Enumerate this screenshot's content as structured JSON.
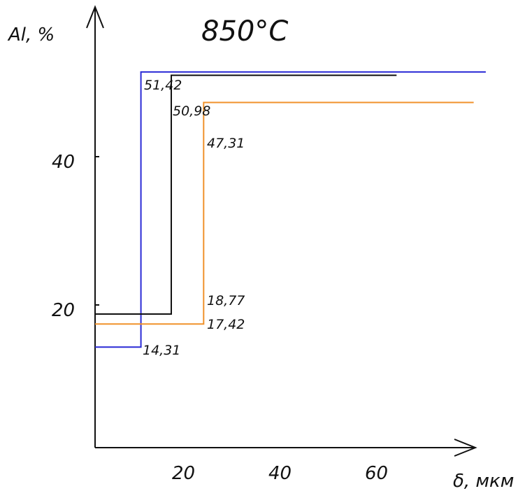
{
  "chart_data": {
    "type": "line",
    "title": "850°C",
    "xlabel": "δ, мкм",
    "ylabel": "Al, %",
    "xticks": [
      "20",
      "40",
      "60"
    ],
    "yticks": [
      "40",
      "20"
    ],
    "xlim": [
      0,
      80
    ],
    "ylim": [
      0,
      56
    ],
    "grid": false,
    "legend": "none",
    "series": [
      {
        "color": "#2b2bd6",
        "points": [
          [
            0,
            14.31
          ],
          [
            9.5,
            14.31
          ],
          [
            9.5,
            51.42
          ],
          [
            81,
            51.42
          ]
        ],
        "labels": [
          "14,31",
          "51,42"
        ]
      },
      {
        "color": "#111111",
        "points": [
          [
            0,
            18.77
          ],
          [
            15.8,
            18.77
          ],
          [
            15.8,
            50.98
          ],
          [
            62.5,
            50.98
          ]
        ],
        "labels": [
          "18,77",
          "50,98"
        ]
      },
      {
        "color": "#f0922b",
        "points": [
          [
            0,
            17.42
          ],
          [
            22.5,
            17.42
          ],
          [
            22.5,
            47.31
          ],
          [
            78.5,
            47.31
          ]
        ],
        "labels": [
          "17,42",
          "47,31"
        ]
      }
    ]
  }
}
